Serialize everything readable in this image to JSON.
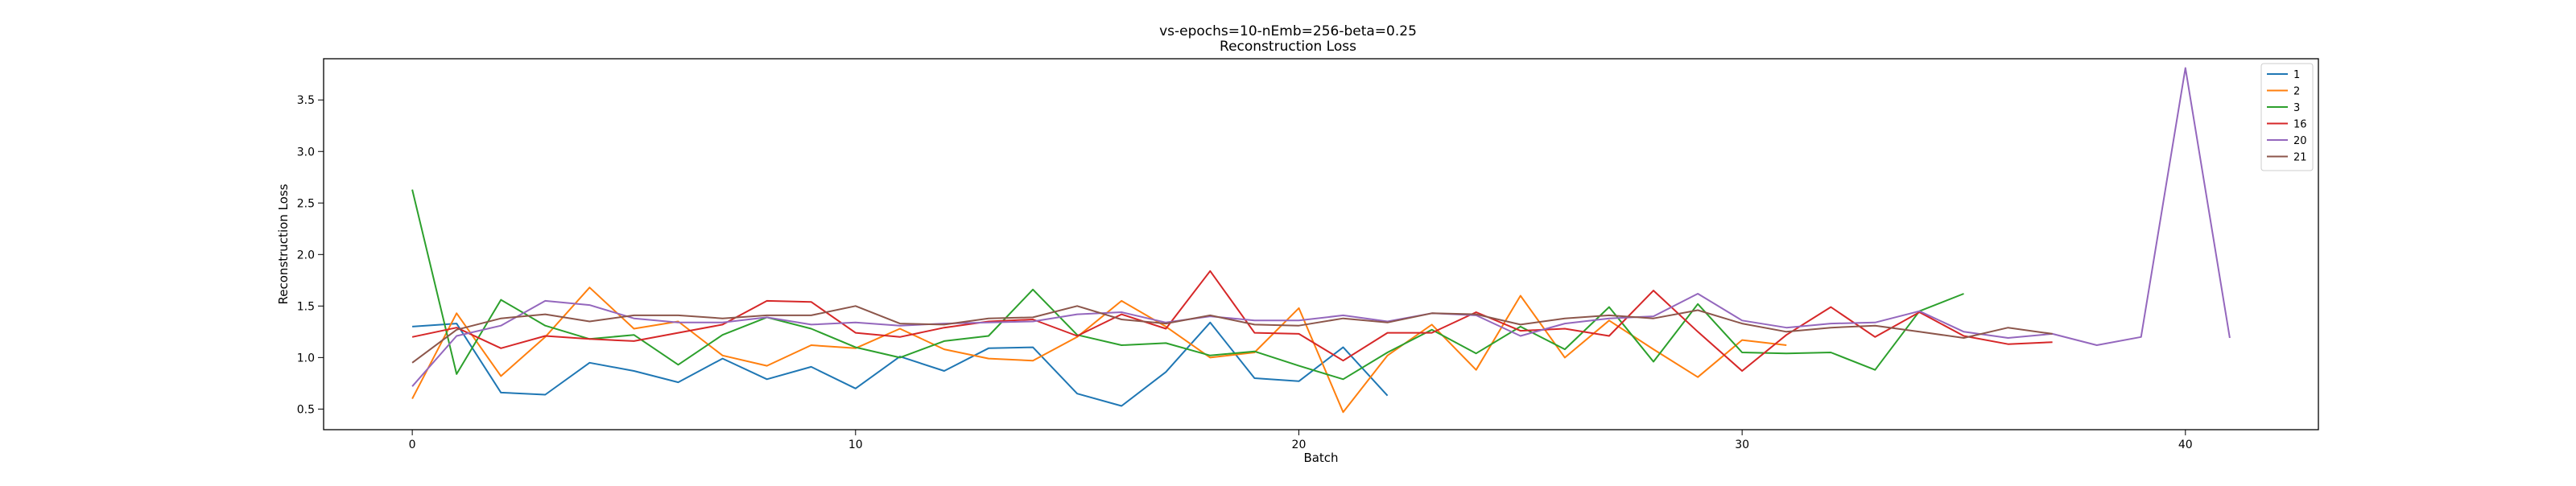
{
  "chart_data": {
    "type": "line",
    "title": "vs-epochs=10-nEmb=256-beta=0.25",
    "subtitle": "Reconstruction Loss",
    "xlabel": "Batch",
    "ylabel": "Reconstruction Loss",
    "xlim": [
      -2,
      43
    ],
    "ylim": [
      0.3,
      3.9
    ],
    "xticks": [
      0,
      10,
      20,
      30,
      40
    ],
    "yticks": [
      0.5,
      1.0,
      1.5,
      2.0,
      2.5,
      3.0,
      3.5
    ],
    "grid": false,
    "legend_position": "top-right",
    "series": [
      {
        "name": "1",
        "color": "#1f77b4",
        "x": [
          0,
          1,
          2,
          3,
          4,
          5,
          6,
          7,
          8,
          9,
          10,
          11,
          12,
          13,
          14,
          15,
          16,
          17,
          18,
          19,
          20,
          21,
          22
        ],
        "values": [
          1.3,
          1.33,
          0.66,
          0.64,
          0.95,
          0.87,
          0.76,
          0.99,
          0.79,
          0.91,
          0.7,
          1.01,
          0.87,
          1.09,
          1.1,
          0.65,
          0.53,
          0.86,
          1.34,
          0.8,
          0.77,
          1.1,
          0.63
        ]
      },
      {
        "name": "2",
        "color": "#ff7f0e",
        "x": [
          0,
          1,
          2,
          3,
          4,
          5,
          6,
          7,
          8,
          9,
          10,
          11,
          12,
          13,
          14,
          15,
          16,
          17,
          18,
          19,
          20,
          21,
          22,
          23,
          24,
          25,
          26,
          27,
          28,
          29,
          30,
          31
        ],
        "values": [
          0.6,
          1.43,
          0.82,
          1.2,
          1.68,
          1.28,
          1.35,
          1.02,
          0.92,
          1.12,
          1.09,
          1.28,
          1.08,
          0.99,
          0.97,
          1.2,
          1.55,
          1.3,
          1.0,
          1.05,
          1.48,
          0.47,
          1.02,
          1.32,
          0.88,
          1.6,
          1.0,
          1.36,
          1.08,
          0.81,
          1.17,
          1.12
        ]
      },
      {
        "name": "3",
        "color": "#2ca02c",
        "x": [
          0,
          1,
          2,
          3,
          4,
          5,
          6,
          7,
          8,
          9,
          10,
          11,
          12,
          13,
          14,
          15,
          16,
          17,
          18,
          19,
          20,
          21,
          22,
          23,
          24,
          25,
          26,
          27,
          28,
          29,
          30,
          31,
          32,
          33,
          34,
          35
        ],
        "values": [
          2.63,
          0.84,
          1.56,
          1.31,
          1.18,
          1.22,
          0.93,
          1.22,
          1.39,
          1.28,
          1.1,
          1.0,
          1.16,
          1.21,
          1.66,
          1.22,
          1.12,
          1.14,
          1.02,
          1.06,
          0.92,
          0.79,
          1.05,
          1.27,
          1.04,
          1.3,
          1.08,
          1.49,
          0.96,
          1.52,
          1.05,
          1.04,
          1.05,
          0.88,
          1.45,
          1.62
        ]
      },
      {
        "name": "16",
        "color": "#d62728",
        "x": [
          0,
          1,
          2,
          3,
          4,
          5,
          6,
          7,
          8,
          9,
          10,
          11,
          12,
          13,
          14,
          15,
          16,
          17,
          18,
          19,
          20,
          21,
          22,
          23,
          24,
          25,
          26,
          27,
          28,
          29,
          30,
          31,
          32,
          33,
          34,
          35,
          36,
          37
        ],
        "values": [
          1.2,
          1.29,
          1.09,
          1.21,
          1.18,
          1.16,
          1.24,
          1.32,
          1.55,
          1.54,
          1.24,
          1.2,
          1.29,
          1.35,
          1.37,
          1.21,
          1.42,
          1.28,
          1.84,
          1.24,
          1.23,
          0.97,
          1.24,
          1.24,
          1.44,
          1.26,
          1.28,
          1.21,
          1.65,
          1.25,
          0.87,
          1.22,
          1.49,
          1.2,
          1.44,
          1.21,
          1.13,
          1.15
        ]
      },
      {
        "name": "20",
        "color": "#9467bd",
        "x": [
          0,
          1,
          2,
          3,
          4,
          5,
          6,
          7,
          8,
          9,
          10,
          11,
          12,
          13,
          14,
          15,
          16,
          17,
          18,
          19,
          20,
          21,
          22,
          23,
          24,
          25,
          26,
          27,
          28,
          29,
          30,
          31,
          32,
          33,
          34,
          35,
          36,
          37,
          38,
          39,
          40,
          41
        ],
        "values": [
          0.72,
          1.21,
          1.31,
          1.55,
          1.51,
          1.38,
          1.34,
          1.34,
          1.39,
          1.32,
          1.34,
          1.31,
          1.33,
          1.34,
          1.35,
          1.42,
          1.44,
          1.34,
          1.4,
          1.36,
          1.36,
          1.41,
          1.35,
          1.43,
          1.41,
          1.21,
          1.33,
          1.38,
          1.4,
          1.62,
          1.36,
          1.29,
          1.33,
          1.34,
          1.45,
          1.25,
          1.19,
          1.23,
          1.12,
          1.2,
          3.81,
          1.19
        ]
      },
      {
        "name": "21",
        "color": "#8c564b",
        "x": [
          0,
          1,
          2,
          3,
          4,
          5,
          6,
          7,
          8,
          9,
          10,
          11,
          12,
          13,
          14,
          15,
          16,
          17,
          18,
          19,
          20,
          21,
          22,
          23,
          24,
          25,
          26,
          27,
          28,
          29,
          30,
          31,
          32,
          33,
          34,
          35,
          36,
          37
        ],
        "values": [
          0.95,
          1.27,
          1.38,
          1.42,
          1.35,
          1.41,
          1.41,
          1.38,
          1.41,
          1.41,
          1.5,
          1.33,
          1.32,
          1.38,
          1.39,
          1.5,
          1.37,
          1.33,
          1.41,
          1.32,
          1.31,
          1.38,
          1.34,
          1.43,
          1.42,
          1.32,
          1.38,
          1.41,
          1.38,
          1.46,
          1.33,
          1.25,
          1.29,
          1.31,
          1.25,
          1.19,
          1.29,
          1.23
        ]
      }
    ]
  }
}
